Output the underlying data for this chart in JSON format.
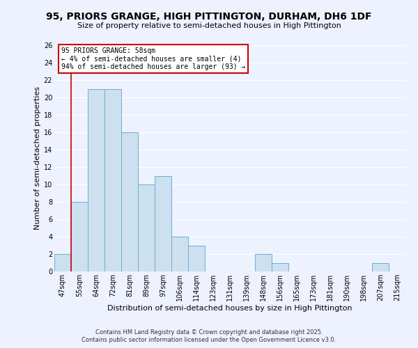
{
  "title": "95, PRIORS GRANGE, HIGH PITTINGTON, DURHAM, DH6 1DF",
  "subtitle": "Size of property relative to semi-detached houses in High Pittington",
  "xlabel": "Distribution of semi-detached houses by size in High Pittington",
  "ylabel": "Number of semi-detached properties",
  "bin_labels": [
    "47sqm",
    "55sqm",
    "64sqm",
    "72sqm",
    "81sqm",
    "89sqm",
    "97sqm",
    "106sqm",
    "114sqm",
    "123sqm",
    "131sqm",
    "139sqm",
    "148sqm",
    "156sqm",
    "165sqm",
    "173sqm",
    "181sqm",
    "190sqm",
    "198sqm",
    "207sqm",
    "215sqm"
  ],
  "bar_values": [
    2,
    8,
    21,
    21,
    16,
    10,
    11,
    4,
    3,
    0,
    0,
    0,
    2,
    1,
    0,
    0,
    0,
    0,
    0,
    1,
    0
  ],
  "bar_color": "#cce0f0",
  "bar_edge_color": "#6aaed6",
  "vline_color": "#cc0000",
  "ylim": [
    0,
    26
  ],
  "yticks": [
    0,
    2,
    4,
    6,
    8,
    10,
    12,
    14,
    16,
    18,
    20,
    22,
    24,
    26
  ],
  "annotation_title": "95 PRIORS GRANGE: 58sqm",
  "annotation_line1": "← 4% of semi-detached houses are smaller (4)",
  "annotation_line2": "94% of semi-detached houses are larger (93) →",
  "annotation_box_color": "#cc0000",
  "footer_line1": "Contains HM Land Registry data © Crown copyright and database right 2025.",
  "footer_line2": "Contains public sector information licensed under the Open Government Licence v3.0.",
  "background_color": "#eef2ff",
  "grid_color": "#ffffff",
  "title_fontsize": 10,
  "subtitle_fontsize": 8,
  "axis_label_fontsize": 8,
  "tick_fontsize": 7,
  "annotation_fontsize": 7,
  "footer_fontsize": 6
}
